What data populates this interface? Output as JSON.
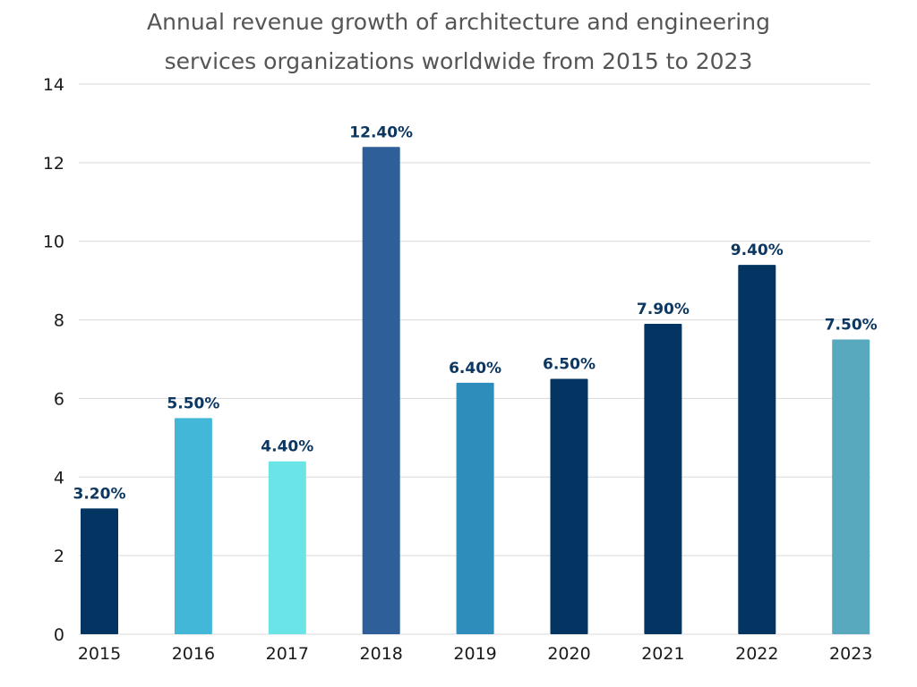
{
  "chart_data": {
    "type": "bar",
    "title_lines": [
      "Annual revenue growth of architecture and engineering",
      "services organizations worldwide from 2015 to 2023"
    ],
    "categories": [
      "2015",
      "2016",
      "2017",
      "2018",
      "2019",
      "2020",
      "2021",
      "2022",
      "2023"
    ],
    "values": [
      3.2,
      5.5,
      4.4,
      12.4,
      6.4,
      6.5,
      7.9,
      9.4,
      7.5
    ],
    "data_labels": [
      "3.20%",
      "5.50%",
      "4.40%",
      "12.40%",
      "6.40%",
      "6.50%",
      "7.90%",
      "9.40%",
      "7.50%"
    ],
    "bar_colors": [
      "#033462",
      "#43b7d7",
      "#6be4e8",
      "#2f5f99",
      "#2f8dbb",
      "#033462",
      "#033462",
      "#033462",
      "#58a9bd"
    ],
    "label_color": "#0c3761",
    "yticks": [
      "0",
      "2",
      "4",
      "6",
      "8",
      "10",
      "12",
      "14"
    ],
    "ylim": [
      0,
      14
    ],
    "xlabel": "",
    "ylabel": "",
    "grid": true,
    "legend": "none"
  }
}
